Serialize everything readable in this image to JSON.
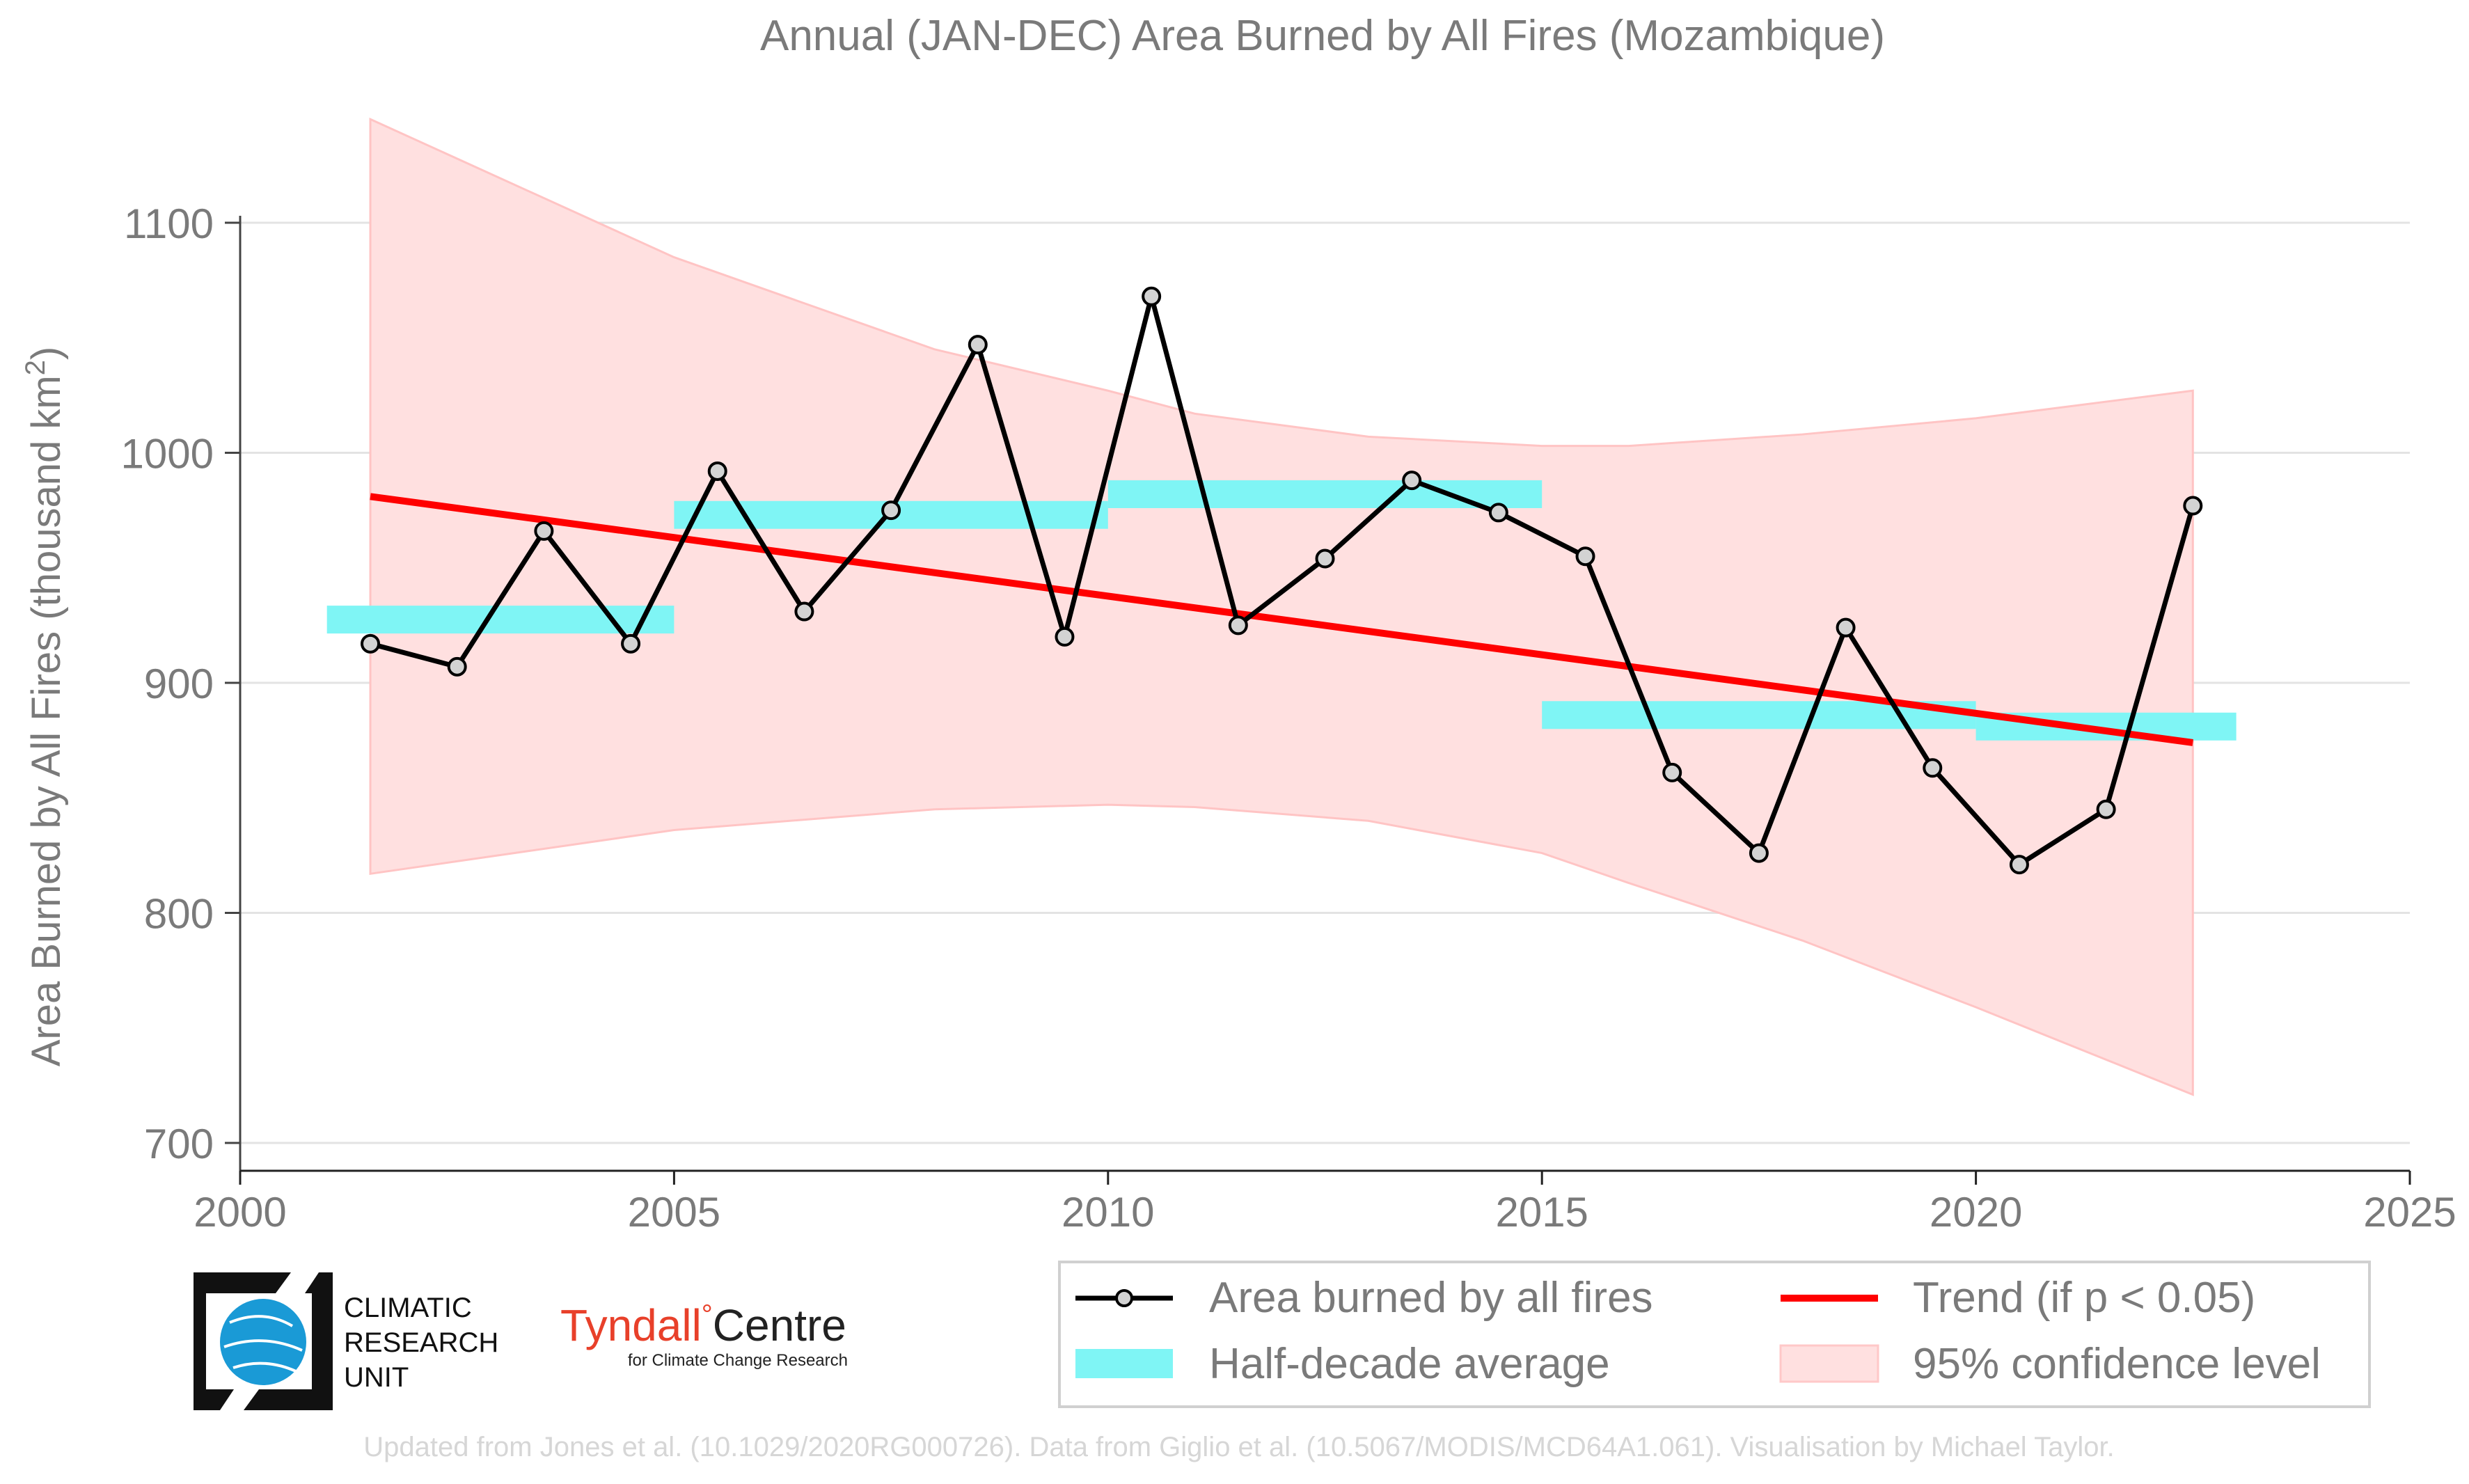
{
  "chart_data": {
    "type": "line",
    "title": "Annual (JAN-DEC) Area Burned by All Fires (Mozambique)",
    "ylabel_main": "Area Burned by All Fires (thousand km",
    "ylabel_sup": "2",
    "ylabel_end": ")",
    "xlabel": "",
    "xlim": [
      2000,
      2025
    ],
    "ylim": [
      700,
      1120
    ],
    "xticks": [
      "2000",
      "2005",
      "2010",
      "2015",
      "2020",
      "2025"
    ],
    "yticks": [
      "700",
      "800",
      "900",
      "1000",
      "1100"
    ],
    "grid": "horizontal",
    "legend_position": "bottom-right",
    "series": [
      {
        "name": "Area burned by all fires",
        "color": "#000000",
        "marker_fill": "#d3d3d3",
        "x": [
          2001.5,
          2002.5,
          2003.5,
          2004.5,
          2005.5,
          2006.5,
          2007.5,
          2008.5,
          2009.5,
          2010.5,
          2011.5,
          2012.5,
          2013.5,
          2014.5,
          2015.5,
          2016.5,
          2017.5,
          2018.5,
          2019.5,
          2020.5,
          2021.5,
          2022.5
        ],
        "y": [
          917,
          907,
          966,
          917,
          992,
          931,
          975,
          1047,
          920,
          1068,
          925,
          954,
          988,
          974,
          955,
          861,
          826,
          924,
          863,
          821,
          845,
          977
        ]
      }
    ],
    "half_decade_average": {
      "name": "Half-decade average",
      "color": "#7ff5f5",
      "segments": [
        {
          "x0": 2001,
          "x1": 2005,
          "y": 927.5
        },
        {
          "x0": 2005,
          "x1": 2010,
          "y": 973
        },
        {
          "x0": 2010,
          "x1": 2015,
          "y": 982
        },
        {
          "x0": 2015,
          "x1": 2020,
          "y": 886
        },
        {
          "x0": 2020,
          "x1": 2023,
          "y": 881
        }
      ]
    },
    "trend": {
      "name": "Trend (if p < 0.05)",
      "color": "#ff0000",
      "x": [
        2001.5,
        2022.5
      ],
      "y": [
        981,
        874
      ]
    },
    "confidence_band": {
      "name": "95% confidence level",
      "color": "#ffcccc",
      "x": [
        2001.5,
        2005,
        2008,
        2010,
        2011,
        2013,
        2015,
        2016,
        2018,
        2020,
        2022.5
      ],
      "upper": [
        1145,
        1085,
        1045,
        1027,
        1017,
        1007,
        1003,
        1003,
        1008,
        1015,
        1027
      ],
      "lower": [
        817,
        836,
        845,
        847,
        846,
        840,
        826,
        813,
        788,
        759,
        721
      ]
    }
  },
  "legend": {
    "items": [
      "Area burned by all fires",
      "Trend (if p < 0.05)",
      "Half-decade average",
      "95% confidence level"
    ]
  },
  "logos": {
    "cru_line1": "CLIMATIC",
    "cru_line2": "RESEARCH",
    "cru_line3": "UNIT",
    "tyndall_name": "Tyndall",
    "tyndall_degree": "°",
    "tyndall_centre": "Centre",
    "tyndall_tagline": "for Climate Change Research"
  },
  "footer": {
    "credit": "Updated from Jones et al. (10.1029/2020RG000726). Data from Giglio et al. (10.5067/MODIS/MCD64A1.061). Visualisation by Michael Taylor."
  }
}
